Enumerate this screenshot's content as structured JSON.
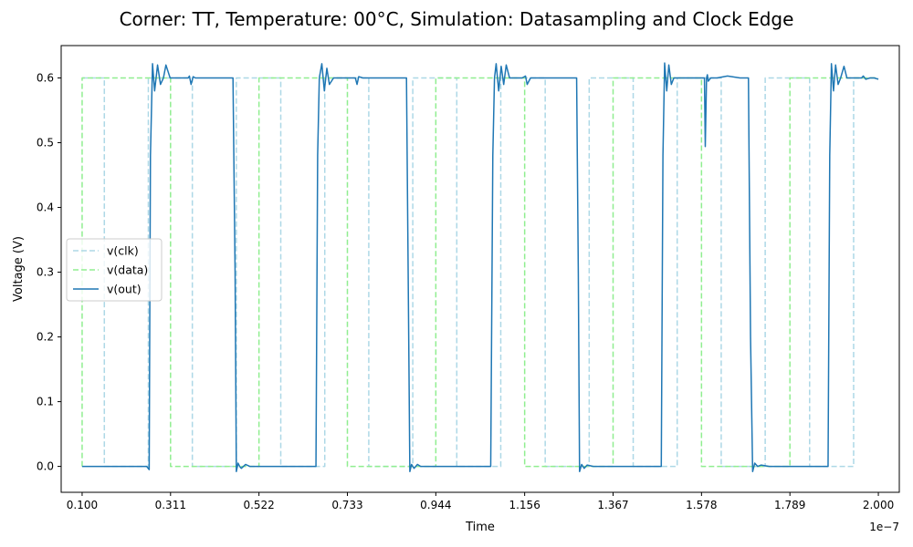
{
  "chart_data": {
    "type": "line",
    "title": "Corner: TT, Temperature: 00°C, Simulation: Datasampling and Clock Edge",
    "xlabel": "Time",
    "ylabel": "Voltage (V)",
    "x_offset_label": "1e−7",
    "xlim": [
      0.05,
      2.05
    ],
    "ylim": [
      -0.04,
      0.65
    ],
    "x_ticks": [
      0.1,
      0.311,
      0.522,
      0.733,
      0.944,
      1.156,
      1.367,
      1.578,
      1.789,
      2.0
    ],
    "x_tick_labels": [
      "0.100",
      "0.311",
      "0.522",
      "0.733",
      "0.944",
      "1.156",
      "1.367",
      "1.578",
      "1.789",
      "2.000"
    ],
    "y_ticks": [
      0.0,
      0.1,
      0.2,
      0.3,
      0.4,
      0.5,
      0.6
    ],
    "y_tick_labels": [
      "0.0",
      "0.1",
      "0.2",
      "0.3",
      "0.4",
      "0.5",
      "0.6"
    ],
    "legend": {
      "position": "center-left"
    },
    "grid": false,
    "series": [
      {
        "name": "v(clk)",
        "color": "#add8e6",
        "style": "dashed",
        "x": [
          0.1,
          0.153,
          0.153,
          0.258,
          0.258,
          0.363,
          0.363,
          0.468,
          0.468,
          0.574,
          0.574,
          0.679,
          0.679,
          0.784,
          0.784,
          0.889,
          0.889,
          0.994,
          0.994,
          1.099,
          1.099,
          1.205,
          1.205,
          1.31,
          1.31,
          1.415,
          1.415,
          1.52,
          1.52,
          1.625,
          1.625,
          1.73,
          1.73,
          1.836,
          1.836,
          1.941,
          1.941,
          2.0
        ],
        "y": [
          0.6,
          0.6,
          0.0,
          0.0,
          0.6,
          0.6,
          0.0,
          0.0,
          0.6,
          0.6,
          0.0,
          0.0,
          0.6,
          0.6,
          0.0,
          0.0,
          0.6,
          0.6,
          0.0,
          0.0,
          0.6,
          0.6,
          0.0,
          0.0,
          0.6,
          0.6,
          0.0,
          0.0,
          0.6,
          0.6,
          0.0,
          0.0,
          0.6,
          0.6,
          0.0,
          0.0,
          0.6,
          0.6
        ]
      },
      {
        "name": "v(data)",
        "color": "#90ee90",
        "style": "dashed",
        "x": [
          0.1,
          0.1,
          0.311,
          0.311,
          0.522,
          0.522,
          0.733,
          0.733,
          0.944,
          0.944,
          1.156,
          1.156,
          1.367,
          1.367,
          1.578,
          1.578,
          1.789,
          1.789,
          2.0
        ],
        "y": [
          0.0,
          0.6,
          0.6,
          0.0,
          0.0,
          0.6,
          0.6,
          0.0,
          0.0,
          0.6,
          0.6,
          0.0,
          0.0,
          0.6,
          0.6,
          0.0,
          0.0,
          0.6,
          0.6
        ]
      },
      {
        "name": "v(out)",
        "color": "#1f77b4",
        "style": "solid",
        "x": [
          0.1,
          0.15,
          0.2,
          0.254,
          0.26,
          0.263,
          0.268,
          0.273,
          0.28,
          0.287,
          0.294,
          0.3,
          0.31,
          0.32,
          0.353,
          0.356,
          0.36,
          0.365,
          0.37,
          0.38,
          0.42,
          0.46,
          0.465,
          0.468,
          0.472,
          0.476,
          0.48,
          0.49,
          0.5,
          0.55,
          0.6,
          0.658,
          0.662,
          0.666,
          0.672,
          0.678,
          0.684,
          0.69,
          0.7,
          0.72,
          0.752,
          0.756,
          0.76,
          0.77,
          0.8,
          0.874,
          0.878,
          0.882,
          0.886,
          0.892,
          0.9,
          0.908,
          0.92,
          0.95,
          1.0,
          1.075,
          1.08,
          1.084,
          1.088,
          1.094,
          1.1,
          1.106,
          1.112,
          1.12,
          1.15,
          1.158,
          1.162,
          1.17,
          1.19,
          1.25,
          1.28,
          1.284,
          1.287,
          1.292,
          1.298,
          1.305,
          1.32,
          1.35,
          1.4,
          1.482,
          1.486,
          1.49,
          1.495,
          1.5,
          1.506,
          1.512,
          1.52,
          1.545,
          1.585,
          1.587,
          1.59,
          1.592,
          1.594,
          1.6,
          1.615,
          1.64,
          1.67,
          1.69,
          1.695,
          1.7,
          1.705,
          1.712,
          1.72,
          1.74,
          1.8,
          1.88,
          1.884,
          1.888,
          1.893,
          1.898,
          1.904,
          1.91,
          1.918,
          1.925,
          1.96,
          1.964,
          1.97,
          1.98,
          1.99,
          2.0
        ],
        "y": [
          0.0,
          0.0,
          0.0,
          0.0,
          -0.005,
          0.48,
          0.622,
          0.58,
          0.62,
          0.59,
          0.6,
          0.62,
          0.6,
          0.6,
          0.6,
          0.603,
          0.59,
          0.602,
          0.6,
          0.6,
          0.6,
          0.6,
          0.3,
          -0.008,
          0.005,
          0.0,
          -0.003,
          0.003,
          0.0,
          0.0,
          0.0,
          0.0,
          0.48,
          0.6,
          0.622,
          0.58,
          0.615,
          0.59,
          0.6,
          0.6,
          0.6,
          0.59,
          0.602,
          0.6,
          0.6,
          0.6,
          0.3,
          -0.008,
          0.003,
          -0.003,
          0.003,
          0.0,
          0.0,
          0.0,
          0.0,
          0.0,
          0.48,
          0.6,
          0.622,
          0.58,
          0.618,
          0.59,
          0.62,
          0.6,
          0.6,
          0.603,
          0.59,
          0.6,
          0.6,
          0.6,
          0.6,
          0.3,
          -0.008,
          0.003,
          -0.003,
          0.002,
          0.0,
          0.0,
          0.0,
          0.0,
          0.48,
          0.623,
          0.58,
          0.62,
          0.59,
          0.6,
          0.6,
          0.6,
          0.6,
          0.494,
          0.6,
          0.605,
          0.595,
          0.6,
          0.6,
          0.603,
          0.6,
          0.6,
          0.2,
          -0.008,
          0.005,
          0.0,
          0.002,
          0.0,
          0.0,
          0.0,
          0.48,
          0.622,
          0.58,
          0.62,
          0.59,
          0.6,
          0.618,
          0.6,
          0.6,
          0.603,
          0.598,
          0.6,
          0.6,
          0.598
        ]
      }
    ]
  }
}
